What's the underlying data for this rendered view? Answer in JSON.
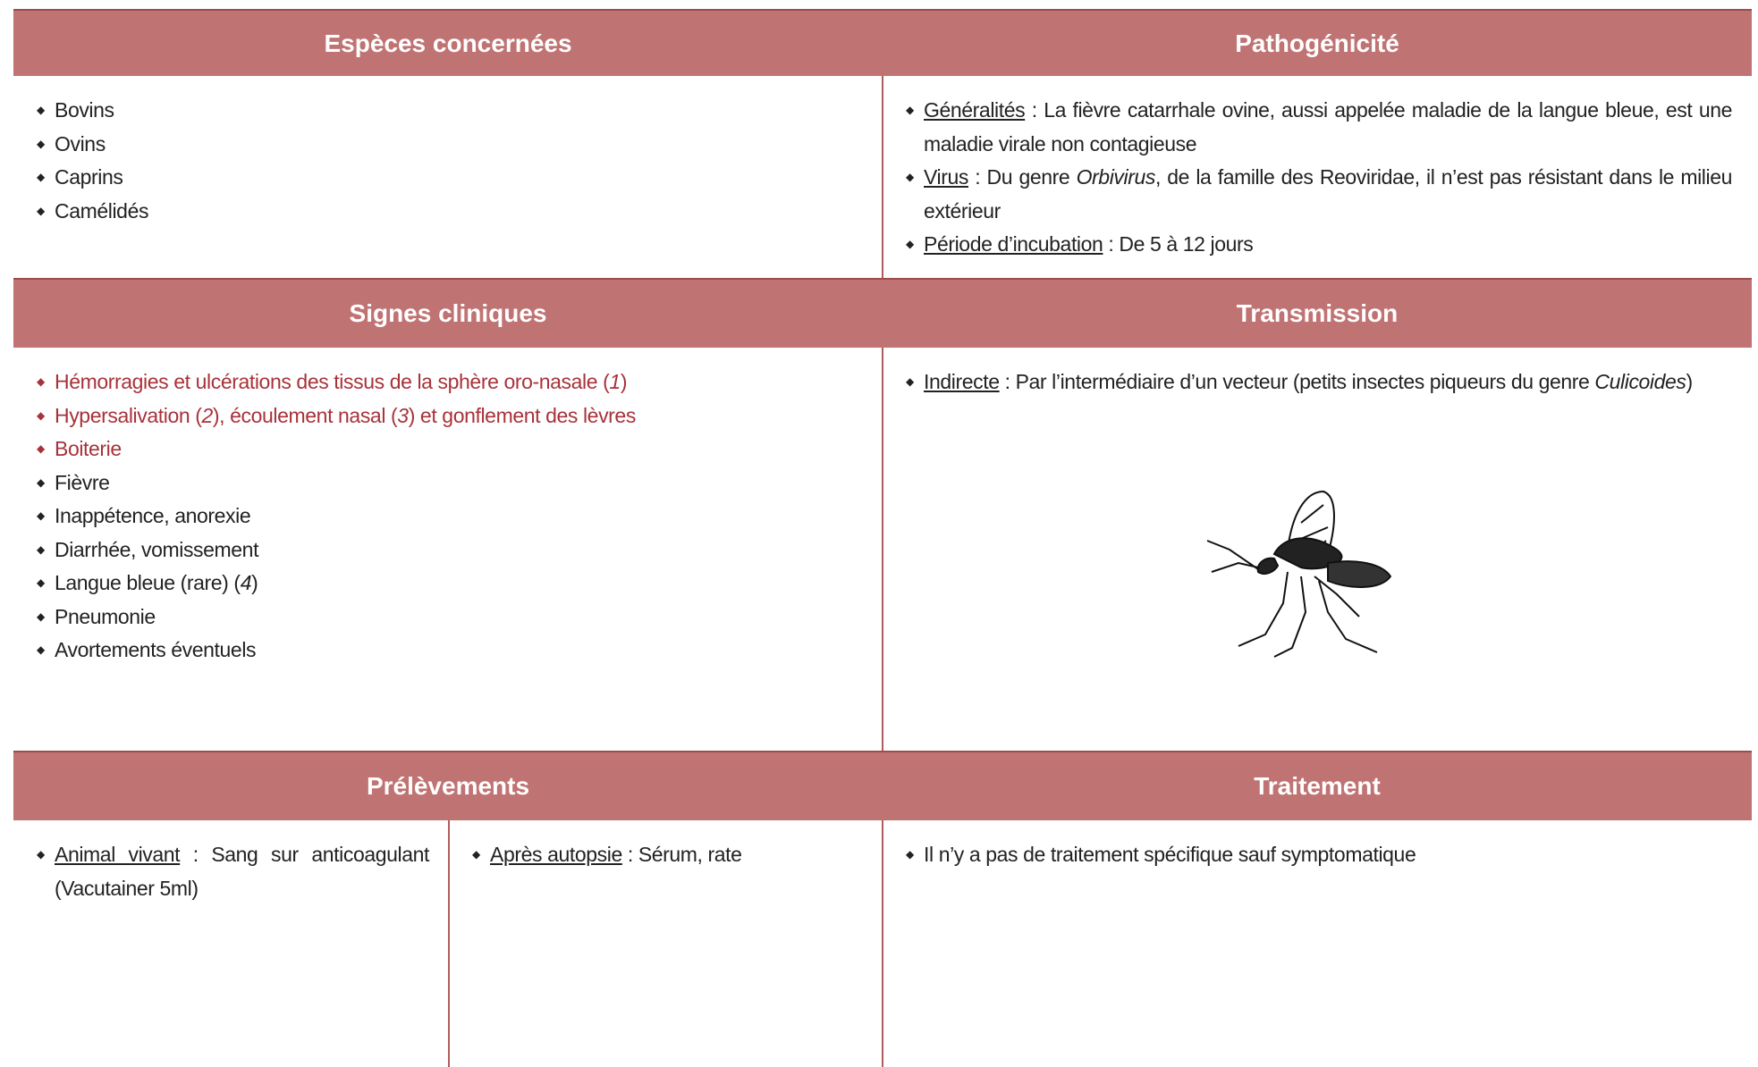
{
  "sections": [
    {
      "title": "Espèces concernées",
      "items": [
        {
          "runs": [
            {
              "text": "Bovins"
            }
          ]
        },
        {
          "runs": [
            {
              "text": "Ovins"
            }
          ]
        },
        {
          "runs": [
            {
              "text": "Caprins"
            }
          ]
        },
        {
          "runs": [
            {
              "text": "Camélidés"
            }
          ]
        }
      ]
    },
    {
      "title": "Pathogénicité",
      "items": [
        {
          "runs": [
            {
              "text": "Généralités",
              "underline": true
            },
            {
              "text": " : La fièvre catarrhale ovine, aussi appelée maladie de la langue bleue, est une maladie virale non contagieuse"
            }
          ]
        },
        {
          "runs": [
            {
              "text": "Virus",
              "underline": true
            },
            {
              "text": " : Du genre "
            },
            {
              "text": "Orbivirus",
              "italic": true
            },
            {
              "text": ", de la famille des Reoviridae, il n’est pas résistant dans le milieu extérieur"
            }
          ]
        },
        {
          "runs": [
            {
              "text": "Période d’incubation",
              "underline": true
            },
            {
              "text": " : De 5 à 12 jours"
            }
          ]
        }
      ]
    },
    {
      "title": "Signes cliniques",
      "items": [
        {
          "color": "#a8323a",
          "runs": [
            {
              "text": "Hémorragies et ulcérations des tissus de la sphère oro-nasale ("
            },
            {
              "text": "1",
              "italic": true
            },
            {
              "text": ")"
            }
          ]
        },
        {
          "color": "#a8323a",
          "runs": [
            {
              "text": "Hypersalivation ("
            },
            {
              "text": "2",
              "italic": true
            },
            {
              "text": "), écoulement nasal ("
            },
            {
              "text": "3",
              "italic": true
            },
            {
              "text": ") et gonflement des lèvres"
            }
          ]
        },
        {
          "color": "#a8323a",
          "runs": [
            {
              "text": "Boiterie"
            }
          ]
        },
        {
          "runs": [
            {
              "text": "Fièvre"
            }
          ]
        },
        {
          "runs": [
            {
              "text": "Inappétence, anorexie"
            }
          ]
        },
        {
          "runs": [
            {
              "text": "Diarrhée, vomissement"
            }
          ]
        },
        {
          "runs": [
            {
              "text": "Langue bleue (rare) ("
            },
            {
              "text": "4",
              "italic": true
            },
            {
              "text": ")"
            }
          ]
        },
        {
          "runs": [
            {
              "text": "Pneumonie"
            }
          ]
        },
        {
          "runs": [
            {
              "text": "Avortements éventuels"
            }
          ]
        }
      ]
    },
    {
      "title": "Transmission",
      "items": [
        {
          "runs": [
            {
              "text": "Indirecte",
              "underline": true
            },
            {
              "text": " : Par l’intermédiaire d’un vecteur (petits insectes piqueurs du genre "
            },
            {
              "text": "Culicoides",
              "italic": true
            },
            {
              "text": ")"
            }
          ]
        }
      ]
    },
    {
      "title": "Prélèvements",
      "columns": [
        {
          "items": [
            {
              "runs": [
                {
                  "text": "Animal vivant",
                  "underline": true
                },
                {
                  "text": " : Sang sur anticoagulant (Vacutainer 5ml)"
                }
              ]
            }
          ]
        },
        {
          "items": [
            {
              "runs": [
                {
                  "text": "Après autopsie",
                  "underline": true
                },
                {
                  "text": " : Sérum, rate"
                }
              ]
            }
          ]
        }
      ]
    },
    {
      "title": "Traitement",
      "items": [
        {
          "runs": [
            {
              "text": "Il n’y a pas de traitement spécifique sauf symptomatique"
            }
          ]
        }
      ]
    }
  ]
}
